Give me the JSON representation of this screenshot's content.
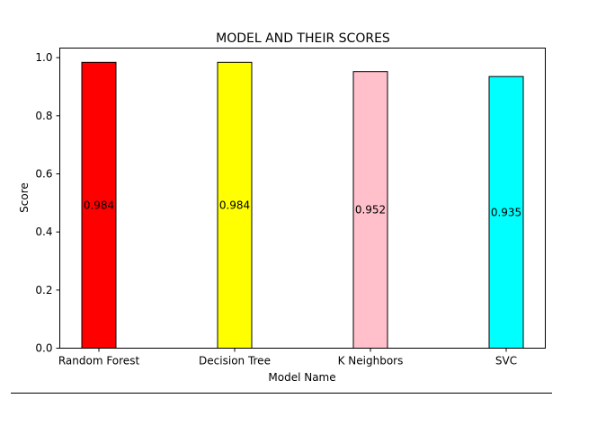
{
  "chart_data": {
    "type": "bar",
    "title": "MODEL AND THEIR SCORES",
    "xlabel": "Model Name",
    "ylabel": "Score",
    "categories": [
      "Random Forest",
      "Decision Tree",
      "K Neighbors",
      "SVC"
    ],
    "values": [
      0.984,
      0.984,
      0.952,
      0.935
    ],
    "data_labels": [
      "0.984",
      "0.984",
      "0.952",
      "0.935"
    ],
    "colors": [
      "#ff0000",
      "#ffff00",
      "#ffc0cb",
      "#00ffff"
    ],
    "edge_color": "#000000",
    "ylim": [
      0,
      1.033
    ],
    "yticks": [
      0.0,
      0.2,
      0.4,
      0.6,
      0.8,
      1.0
    ],
    "ytick_labels": [
      "0.0",
      "0.2",
      "0.4",
      "0.6",
      "0.8",
      "1.0"
    ],
    "grid": false,
    "legend": "none"
  }
}
